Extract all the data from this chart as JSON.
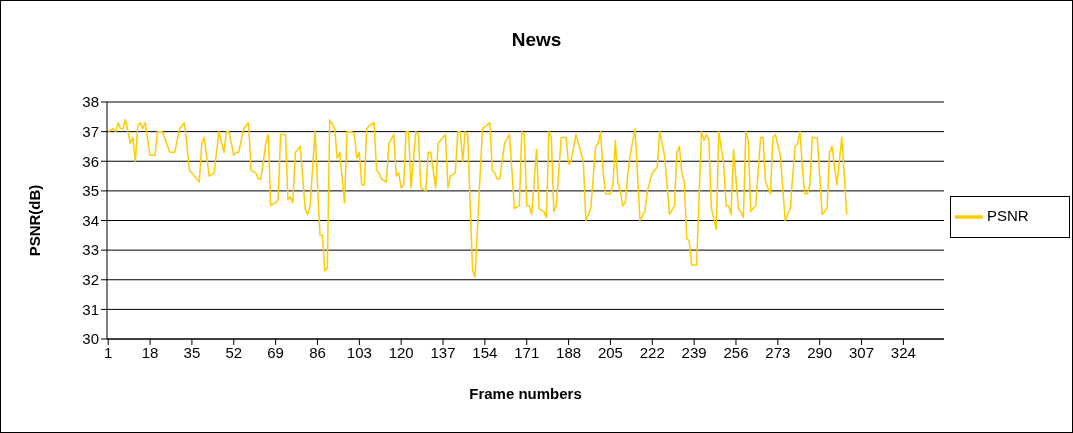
{
  "chart_data": {
    "type": "line",
    "title": "News",
    "xlabel": "Frame numbers",
    "ylabel": "PSNR(dB)",
    "xlim": [
      0.5,
      340.5
    ],
    "xticks": [
      1,
      18,
      35,
      52,
      69,
      86,
      103,
      120,
      137,
      154,
      171,
      188,
      205,
      222,
      239,
      256,
      273,
      290,
      307,
      324
    ],
    "ylim": [
      30,
      38
    ],
    "yticks": [
      30,
      31,
      32,
      33,
      34,
      35,
      36,
      37,
      38
    ],
    "grid": "y",
    "legend": "right",
    "marker": "none",
    "line_style": "solid",
    "series": [
      {
        "name": "PSNR",
        "color": "#ffcc00",
        "x": [
          1,
          3,
          4,
          5,
          6,
          7,
          8,
          10,
          11,
          12,
          13,
          14,
          15,
          16,
          18,
          20,
          21,
          23,
          26,
          28,
          30,
          31,
          32,
          34,
          36,
          38,
          39,
          40,
          42,
          44,
          46,
          48,
          49,
          50,
          52,
          53,
          54,
          56,
          58,
          59,
          61,
          62,
          63,
          65,
          66,
          67,
          69,
          70,
          71,
          73,
          74,
          75,
          76,
          77,
          79,
          81,
          82,
          83,
          85,
          87,
          88,
          89,
          90,
          91,
          93,
          94,
          95,
          97,
          98,
          100,
          101,
          102,
          103,
          104,
          105,
          106,
          107,
          109,
          110,
          111,
          112,
          114,
          115,
          117,
          118,
          119,
          120,
          121,
          122,
          123,
          124,
          126,
          127,
          128,
          130,
          131,
          132,
          134,
          135,
          138,
          139,
          140,
          142,
          143,
          144,
          145,
          146,
          147,
          149,
          150,
          153,
          156,
          157,
          158,
          159,
          160,
          162,
          164,
          166,
          168,
          169,
          170,
          171,
          172,
          173,
          175,
          176,
          178,
          179,
          180,
          181,
          182,
          183,
          185,
          187,
          188,
          189,
          191,
          194,
          195,
          197,
          199,
          200,
          201,
          202,
          203,
          205,
          206,
          207,
          208,
          209,
          210,
          211,
          212,
          213,
          215,
          217,
          219,
          220,
          222,
          224,
          225,
          227,
          229,
          231,
          232,
          233,
          234,
          235,
          236,
          237,
          238,
          240,
          242,
          243,
          244,
          245,
          246,
          248,
          249,
          251,
          252,
          253,
          254,
          255,
          257,
          258,
          259,
          260,
          261,
          262,
          264,
          266,
          267,
          268,
          270,
          271,
          272,
          274,
          276,
          278,
          280,
          281,
          282,
          283,
          284,
          285,
          286,
          287,
          289,
          290,
          291,
          293,
          294,
          295,
          297,
          299,
          300,
          301
        ],
        "values": [
          37.0,
          37.1,
          37.0,
          37.3,
          37.1,
          37.1,
          37.4,
          36.6,
          36.8,
          36.0,
          37.2,
          37.3,
          37.1,
          37.3,
          36.2,
          36.2,
          37.0,
          37.0,
          36.3,
          36.3,
          37.1,
          37.2,
          37.3,
          35.7,
          35.5,
          35.3,
          36.6,
          36.8,
          35.5,
          35.6,
          37.0,
          36.3,
          37.0,
          37.0,
          36.2,
          36.3,
          36.3,
          37.1,
          37.3,
          35.7,
          35.6,
          35.4,
          35.4,
          36.6,
          36.9,
          34.5,
          34.6,
          34.7,
          36.9,
          36.9,
          34.7,
          34.8,
          34.6,
          36.3,
          36.5,
          34.4,
          34.2,
          34.5,
          37.0,
          33.5,
          33.5,
          32.3,
          32.4,
          37.4,
          37.1,
          36.1,
          36.3,
          34.6,
          37.0,
          37.0,
          36.9,
          36.1,
          36.3,
          35.2,
          35.2,
          37.1,
          37.2,
          37.3,
          35.7,
          35.6,
          35.4,
          35.3,
          36.6,
          36.9,
          35.5,
          35.6,
          35.1,
          35.2,
          37.0,
          37.0,
          35.1,
          37.0,
          36.9,
          35.1,
          35.0,
          36.3,
          36.3,
          35.1,
          36.6,
          36.9,
          35.1,
          35.5,
          35.6,
          37.0,
          37.0,
          36.0,
          37.0,
          36.9,
          32.3,
          32.1,
          37.1,
          37.3,
          35.7,
          35.6,
          35.4,
          35.4,
          36.6,
          36.9,
          34.4,
          34.5,
          37.0,
          36.9,
          34.5,
          34.5,
          34.2,
          36.4,
          34.4,
          34.3,
          34.1,
          37.0,
          36.8,
          34.3,
          34.5,
          36.8,
          36.8,
          35.9,
          36.0,
          36.9,
          36.0,
          34.0,
          34.4,
          36.5,
          36.6,
          37.0,
          35.7,
          34.9,
          34.9,
          35.2,
          36.7,
          35.3,
          35.0,
          34.5,
          34.6,
          35.5,
          36.2,
          37.1,
          34.0,
          34.3,
          35.0,
          35.6,
          35.8,
          37.0,
          36.2,
          34.2,
          34.5,
          36.3,
          36.5,
          35.6,
          35.3,
          33.4,
          33.3,
          32.5,
          32.5,
          37.0,
          36.7,
          36.9,
          36.7,
          34.4,
          33.7,
          37.0,
          35.9,
          34.5,
          34.5,
          34.2,
          36.4,
          34.4,
          34.3,
          34.1,
          37.0,
          36.7,
          34.3,
          34.5,
          36.8,
          36.8,
          35.3,
          34.9,
          36.8,
          36.9,
          36.2,
          34.0,
          34.4,
          36.5,
          36.6,
          37.0,
          35.7,
          34.9,
          34.9,
          35.2,
          36.8,
          36.8,
          35.5,
          34.2,
          34.4,
          36.3,
          36.5,
          35.2,
          36.8,
          35.5,
          34.2
        ]
      }
    ]
  }
}
